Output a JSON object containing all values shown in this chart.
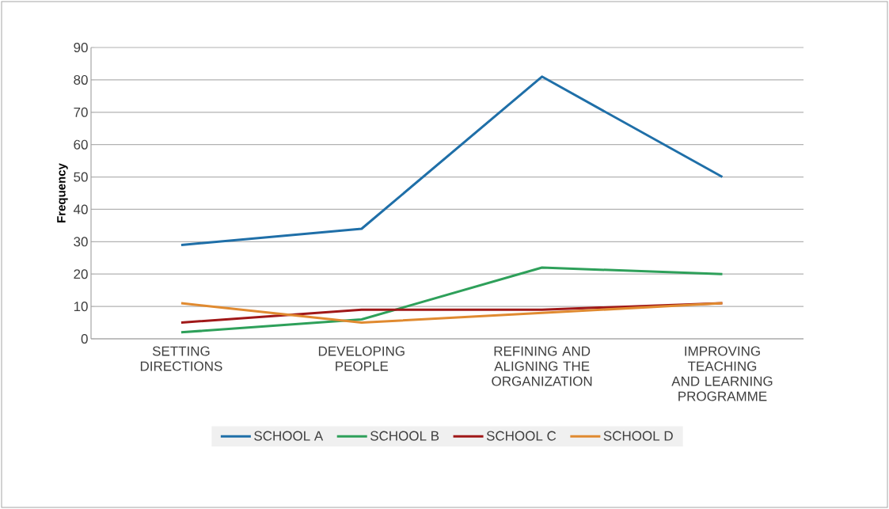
{
  "chart_data": {
    "type": "line",
    "ylabel": "Frequency",
    "categories": [
      "SETTING DIRECTIONS",
      "DEVELOPING PEOPLE",
      "REFINING AND ALIGNING THE ORGANIZATION",
      "IMPROVING TEACHING AND LEARNING PROGRAMME"
    ],
    "series": [
      {
        "name": "SCHOOL A",
        "color": "#1f6fa8",
        "values": [
          29,
          34,
          81,
          50
        ]
      },
      {
        "name": "SCHOOL B",
        "color": "#2ea05a",
        "values": [
          2,
          6,
          22,
          20
        ]
      },
      {
        "name": "SCHOOL C",
        "color": "#a01818",
        "values": [
          5,
          9,
          9,
          11
        ]
      },
      {
        "name": "SCHOOL D",
        "color": "#e08a30",
        "values": [
          11,
          5,
          8,
          11
        ]
      }
    ],
    "ylim": [
      0,
      90
    ],
    "yticks": [
      0,
      10,
      20,
      30,
      40,
      50,
      60,
      70,
      80,
      90
    ],
    "grid": "y",
    "legend": "bottom",
    "marker": "none",
    "line_style": "solid"
  }
}
